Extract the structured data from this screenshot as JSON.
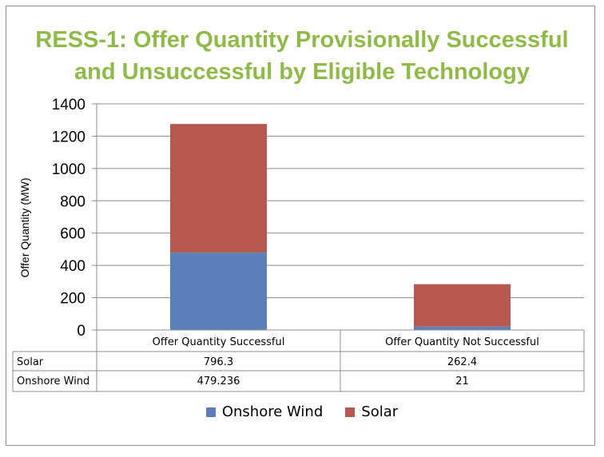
{
  "chart_data": {
    "type": "bar",
    "stacked": true,
    "title_lines": [
      "RESS-1: Offer Quantity Provisionally Successful",
      "and Unsuccessful by Eligible Technology"
    ],
    "ylabel": "Offer Quantity (MW)",
    "ylim": [
      0,
      1400
    ],
    "yticks": [
      0,
      200,
      400,
      600,
      800,
      1000,
      1200,
      1400
    ],
    "categories": [
      "Offer Quantity Successful",
      "Offer Quantity Not Successful"
    ],
    "series": [
      {
        "name": "Onshore Wind",
        "values": [
          479.236,
          21
        ],
        "value_labels": [
          "479.236",
          "21"
        ],
        "color": "#5b80b9"
      },
      {
        "name": "Solar",
        "values": [
          796.3,
          262.4
        ],
        "value_labels": [
          "796.3",
          "262.4"
        ],
        "color": "#b65750"
      }
    ],
    "grid": true,
    "data_table": true,
    "legend_position": "bottom"
  }
}
